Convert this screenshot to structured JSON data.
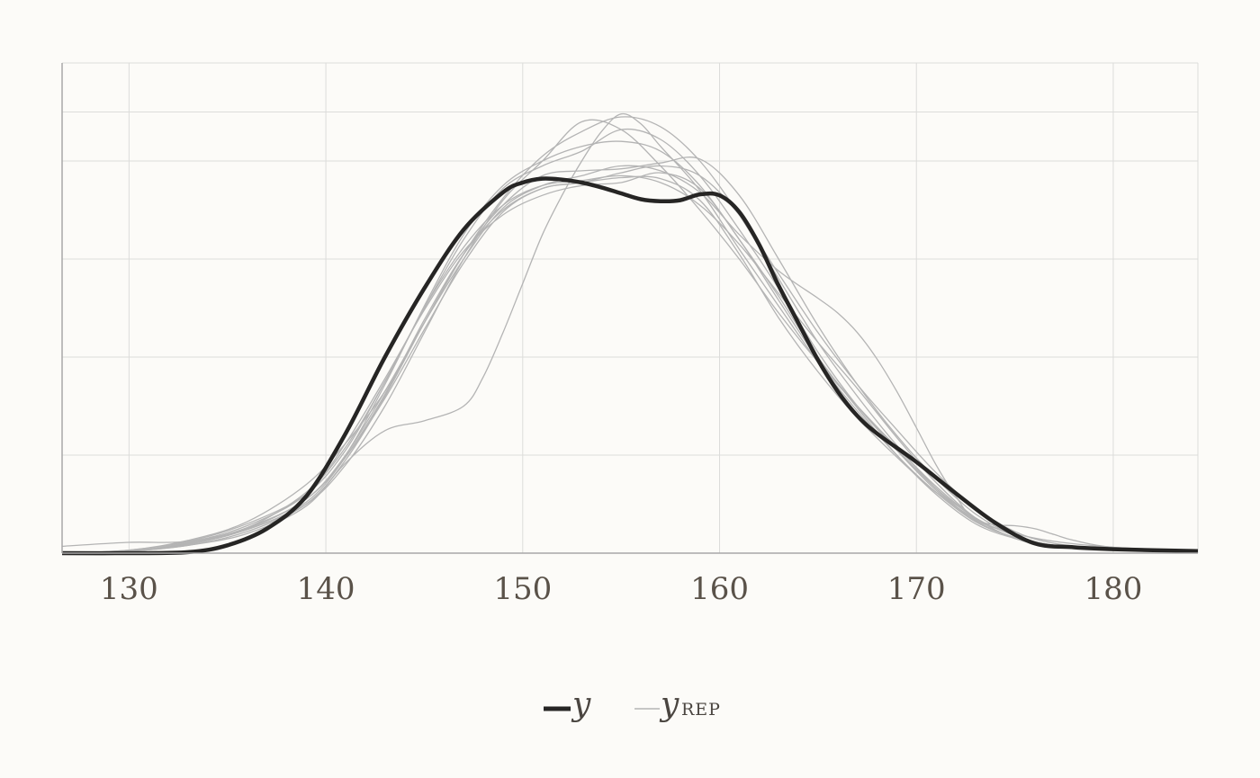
{
  "chart_data": {
    "type": "line",
    "title": "",
    "xlabel": "",
    "ylabel": "",
    "xlim": [
      126.6,
      184.3
    ],
    "ylim": [
      0,
      0.05
    ],
    "grid": true,
    "x_ticks": [
      130,
      140,
      150,
      160,
      170,
      180
    ],
    "x_tick_labels": [
      "130",
      "140",
      "150",
      "160",
      "170",
      "180"
    ],
    "y_ticks": [
      0,
      0.01,
      0.02,
      0.03,
      0.04,
      0.045
    ],
    "legend": {
      "position": "bottom-center",
      "items": [
        {
          "label": "y",
          "subscript": "",
          "style": "thick-dark"
        },
        {
          "label": "y",
          "subscript": "REP",
          "style": "thin-grey"
        }
      ]
    },
    "colors": {
      "observed": "#262524",
      "replicated": "#b4b4b4",
      "grid": "#dcdcda",
      "axis": "#a8a8a8"
    },
    "series": [
      {
        "name": "y",
        "role": "observed",
        "x": [
          126.6,
          130,
          133,
          135,
          137,
          139,
          141,
          143,
          145,
          147,
          149,
          150,
          151,
          152,
          153,
          154,
          155,
          156,
          157,
          158,
          159,
          160,
          161,
          162,
          163,
          164,
          165,
          166,
          167,
          168,
          170,
          172,
          174,
          176,
          178,
          180,
          184.3
        ],
        "y": [
          0,
          0,
          0.0001,
          0.0008,
          0.0025,
          0.0058,
          0.0122,
          0.02,
          0.027,
          0.033,
          0.0368,
          0.0378,
          0.0382,
          0.0381,
          0.0378,
          0.0373,
          0.0367,
          0.0361,
          0.0359,
          0.036,
          0.0366,
          0.0365,
          0.0348,
          0.0315,
          0.0273,
          0.0235,
          0.0197,
          0.0165,
          0.014,
          0.0122,
          0.0093,
          0.0061,
          0.0031,
          0.001,
          0.0006,
          0.0004,
          0.0002
        ]
      },
      {
        "x": [
          126.6,
          130,
          133,
          136,
          139,
          141,
          143,
          145,
          147,
          149,
          151,
          153,
          155,
          157,
          159,
          161,
          163,
          165,
          167,
          169,
          171,
          173,
          175,
          177,
          180,
          184.3
        ],
        "y": [
          0.0007,
          0.0011,
          0.0012,
          0.0026,
          0.0062,
          0.0108,
          0.0175,
          0.025,
          0.0312,
          0.0355,
          0.0375,
          0.038,
          0.0385,
          0.0378,
          0.0355,
          0.0315,
          0.0265,
          0.0215,
          0.0168,
          0.0118,
          0.0072,
          0.0036,
          0.0015,
          0.0007,
          0.0004,
          0.0002
        ]
      },
      {
        "x": [
          126.6,
          130,
          133,
          136,
          139,
          141,
          143,
          145,
          147,
          149,
          151,
          153,
          155,
          157,
          159,
          161,
          163,
          165,
          167,
          169,
          171,
          173,
          175,
          177,
          180,
          184.3
        ],
        "y": [
          0,
          0.0003,
          0.0013,
          0.0032,
          0.007,
          0.0112,
          0.0165,
          0.0235,
          0.0305,
          0.0362,
          0.0405,
          0.043,
          0.0445,
          0.0435,
          0.04,
          0.0345,
          0.028,
          0.0215,
          0.016,
          0.011,
          0.0066,
          0.0033,
          0.0016,
          0.0008,
          0.0004,
          0.0002
        ]
      },
      {
        "x": [
          126.6,
          130,
          133,
          136,
          139,
          141,
          143,
          145,
          147,
          149,
          151,
          153,
          155,
          157,
          159,
          161,
          163,
          165,
          167,
          169,
          171,
          173,
          175,
          177,
          180,
          184.3
        ],
        "y": [
          0,
          0.0003,
          0.0012,
          0.003,
          0.006,
          0.0105,
          0.0175,
          0.025,
          0.032,
          0.0372,
          0.0395,
          0.041,
          0.0432,
          0.0422,
          0.0385,
          0.033,
          0.027,
          0.0205,
          0.015,
          0.0105,
          0.0064,
          0.0033,
          0.0016,
          0.0008,
          0.0004,
          0.0002
        ]
      },
      {
        "x": [
          126.6,
          130,
          133,
          136,
          139,
          141,
          143,
          145,
          147,
          149,
          151,
          153,
          155,
          157,
          159,
          161,
          163,
          165,
          167,
          169,
          171,
          173,
          175,
          177,
          180,
          184.3
        ],
        "y": [
          0,
          0.0002,
          0.001,
          0.0025,
          0.0055,
          0.01,
          0.0172,
          0.0252,
          0.0325,
          0.0375,
          0.04,
          0.0415,
          0.042,
          0.041,
          0.0375,
          0.032,
          0.0262,
          0.02,
          0.0148,
          0.01,
          0.006,
          0.003,
          0.0015,
          0.0007,
          0.0004,
          0.0002
        ]
      },
      {
        "x": [
          126.6,
          130,
          133,
          136,
          139,
          141,
          143,
          145,
          147,
          149,
          151,
          153,
          155,
          157,
          159,
          161,
          163,
          165,
          167,
          169,
          171,
          173,
          175,
          177,
          180,
          184.3
        ],
        "y": [
          0,
          0.0002,
          0.0009,
          0.0024,
          0.005,
          0.009,
          0.015,
          0.0225,
          0.03,
          0.036,
          0.04,
          0.044,
          0.0432,
          0.0395,
          0.035,
          0.03,
          0.0245,
          0.0195,
          0.015,
          0.0108,
          0.0068,
          0.0036,
          0.0018,
          0.0008,
          0.0004,
          0.0002
        ]
      },
      {
        "x": [
          126.6,
          130,
          133,
          136,
          139,
          141,
          143,
          145,
          147,
          149,
          151,
          153,
          155,
          157,
          159,
          161,
          163,
          165,
          167,
          169,
          171,
          173,
          175,
          177,
          180,
          184.3
        ],
        "y": [
          0,
          0.0002,
          0.001,
          0.0025,
          0.0055,
          0.0098,
          0.0158,
          0.0228,
          0.0296,
          0.0348,
          0.0372,
          0.0378,
          0.0388,
          0.0395,
          0.0385,
          0.0345,
          0.0285,
          0.0225,
          0.0172,
          0.0126,
          0.0082,
          0.0046,
          0.0022,
          0.001,
          0.0004,
          0.0002
        ]
      },
      {
        "x": [
          126.6,
          130,
          133,
          136,
          139,
          141,
          143,
          145,
          147,
          149,
          151,
          153,
          155,
          157,
          159,
          161,
          163,
          165,
          167,
          169,
          171,
          173,
          175,
          177,
          180,
          184.3
        ],
        "y": [
          0,
          0.0002,
          0.0008,
          0.0022,
          0.005,
          0.0095,
          0.016,
          0.0235,
          0.0305,
          0.0355,
          0.0385,
          0.039,
          0.0392,
          0.0398,
          0.0402,
          0.0365,
          0.03,
          0.0232,
          0.0172,
          0.012,
          0.0076,
          0.004,
          0.0018,
          0.0008,
          0.0004,
          0.0002
        ]
      },
      {
        "x": [
          126.6,
          130,
          133,
          136,
          139,
          141,
          143,
          145,
          147,
          149,
          151,
          153,
          155,
          157,
          159,
          161,
          163,
          165,
          167,
          169,
          171,
          173,
          175,
          177,
          180,
          184.3
        ],
        "y": [
          0,
          0.0002,
          0.0011,
          0.0028,
          0.006,
          0.0112,
          0.0178,
          0.0248,
          0.0308,
          0.0345,
          0.0365,
          0.0375,
          0.0378,
          0.0388,
          0.0372,
          0.032,
          0.0258,
          0.0198,
          0.015,
          0.0106,
          0.0066,
          0.0036,
          0.0018,
          0.0008,
          0.0004,
          0.0002
        ]
      },
      {
        "x": [
          126.6,
          130,
          133,
          136,
          139,
          141,
          143,
          145,
          147,
          148,
          149,
          150,
          151,
          152,
          153,
          154,
          155,
          156,
          157,
          159,
          161,
          163,
          165,
          167,
          169,
          171,
          173,
          175,
          177,
          180,
          184.3
        ],
        "y": [
          0,
          0.0002,
          0.0008,
          0.002,
          0.0048,
          0.0092,
          0.0125,
          0.0135,
          0.015,
          0.018,
          0.0225,
          0.0275,
          0.0325,
          0.0365,
          0.04,
          0.043,
          0.0448,
          0.0438,
          0.0415,
          0.037,
          0.031,
          0.0252,
          0.0195,
          0.0145,
          0.01,
          0.0062,
          0.0032,
          0.0016,
          0.0008,
          0.0004,
          0.0002
        ]
      },
      {
        "x": [
          126.6,
          130,
          133,
          136,
          139,
          141,
          143,
          145,
          147,
          149,
          151,
          153,
          155,
          157,
          159,
          161,
          163,
          165,
          166,
          167,
          168,
          169,
          170,
          171,
          172,
          173,
          175,
          177,
          180,
          184.3
        ],
        "y": [
          0,
          0.0002,
          0.001,
          0.0026,
          0.0055,
          0.01,
          0.0165,
          0.0235,
          0.03,
          0.0352,
          0.0375,
          0.0385,
          0.0395,
          0.039,
          0.0368,
          0.0325,
          0.0288,
          0.026,
          0.0245,
          0.0225,
          0.0198,
          0.0165,
          0.0128,
          0.009,
          0.0058,
          0.0034,
          0.002,
          0.0012,
          0.0006,
          0.0002
        ]
      },
      {
        "x": [
          126.6,
          130,
          133,
          136,
          139,
          141,
          143,
          145,
          147,
          149,
          151,
          153,
          155,
          157,
          159,
          161,
          163,
          165,
          167,
          169,
          171,
          173,
          174,
          175,
          176,
          177,
          178,
          180,
          184.3
        ],
        "y": [
          0,
          0.0002,
          0.0009,
          0.0024,
          0.0052,
          0.0098,
          0.0162,
          0.0238,
          0.0305,
          0.035,
          0.0372,
          0.0378,
          0.0383,
          0.0382,
          0.036,
          0.0305,
          0.024,
          0.0185,
          0.0138,
          0.0098,
          0.0062,
          0.0035,
          0.0029,
          0.0028,
          0.0025,
          0.0019,
          0.0013,
          0.0006,
          0.0002
        ]
      }
    ]
  }
}
